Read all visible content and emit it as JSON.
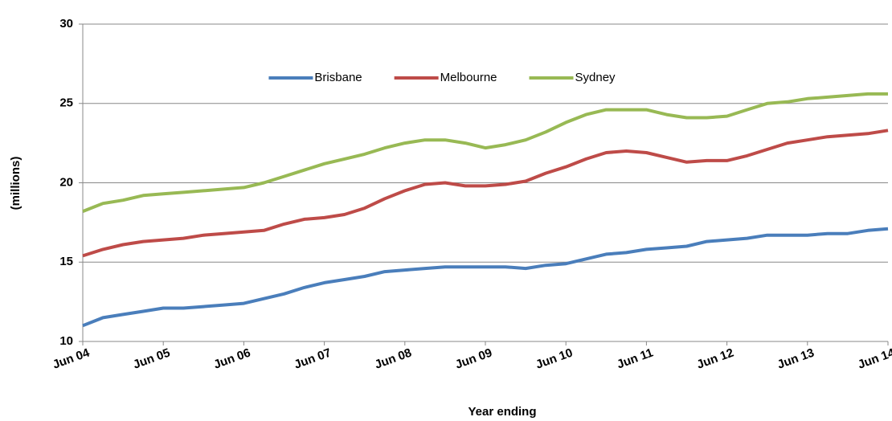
{
  "chart_data": {
    "type": "line",
    "x_label": "Year ending",
    "y_label": "(millions)",
    "categories": [
      "Jun 04",
      null,
      null,
      null,
      "Jun 05",
      null,
      null,
      null,
      "Jun 06",
      null,
      null,
      null,
      "Jun 07",
      null,
      null,
      null,
      "Jun 08",
      null,
      null,
      null,
      "Jun 09",
      null,
      null,
      null,
      "Jun 10",
      null,
      null,
      null,
      "Jun 11",
      null,
      null,
      null,
      "Jun 12",
      null,
      null,
      null,
      "Jun 13",
      null,
      null,
      null,
      "Jun 14"
    ],
    "series": [
      {
        "name": "Brisbane",
        "color": "#4a7ebb",
        "values": [
          11.0,
          11.5,
          11.7,
          11.9,
          12.1,
          12.1,
          12.2,
          12.3,
          12.4,
          12.7,
          13.0,
          13.4,
          13.7,
          13.9,
          14.1,
          14.4,
          14.5,
          14.6,
          14.7,
          14.7,
          14.7,
          14.7,
          14.6,
          14.8,
          14.9,
          15.2,
          15.5,
          15.6,
          15.8,
          15.9,
          16.0,
          16.3,
          16.4,
          16.5,
          16.7,
          16.7,
          16.7,
          16.8,
          16.8,
          17.0,
          17.1
        ]
      },
      {
        "name": "Melbourne",
        "color": "#be4b48",
        "values": [
          15.4,
          15.8,
          16.1,
          16.3,
          16.4,
          16.5,
          16.7,
          16.8,
          16.9,
          17.0,
          17.4,
          17.7,
          17.8,
          18.0,
          18.4,
          19.0,
          19.5,
          19.9,
          20.0,
          19.8,
          19.8,
          19.9,
          20.1,
          20.6,
          21.0,
          21.5,
          21.9,
          22.0,
          21.9,
          21.6,
          21.3,
          21.4,
          21.4,
          21.7,
          22.1,
          22.5,
          22.7,
          22.9,
          23.0,
          23.1,
          23.3
        ]
      },
      {
        "name": "Sydney",
        "color": "#98b954",
        "values": [
          18.2,
          18.7,
          18.9,
          19.2,
          19.3,
          19.4,
          19.5,
          19.6,
          19.7,
          20.0,
          20.4,
          20.8,
          21.2,
          21.5,
          21.8,
          22.2,
          22.5,
          22.7,
          22.7,
          22.5,
          22.2,
          22.4,
          22.7,
          23.2,
          23.8,
          24.3,
          24.6,
          24.6,
          24.6,
          24.3,
          24.1,
          24.1,
          24.2,
          24.6,
          25.0,
          25.1,
          25.3,
          25.4,
          25.5,
          25.6,
          25.6
        ]
      }
    ],
    "ylim": [
      10,
      30
    ],
    "yticks": [
      10,
      15,
      20,
      25,
      30
    ],
    "grid": true,
    "legend": "top"
  }
}
